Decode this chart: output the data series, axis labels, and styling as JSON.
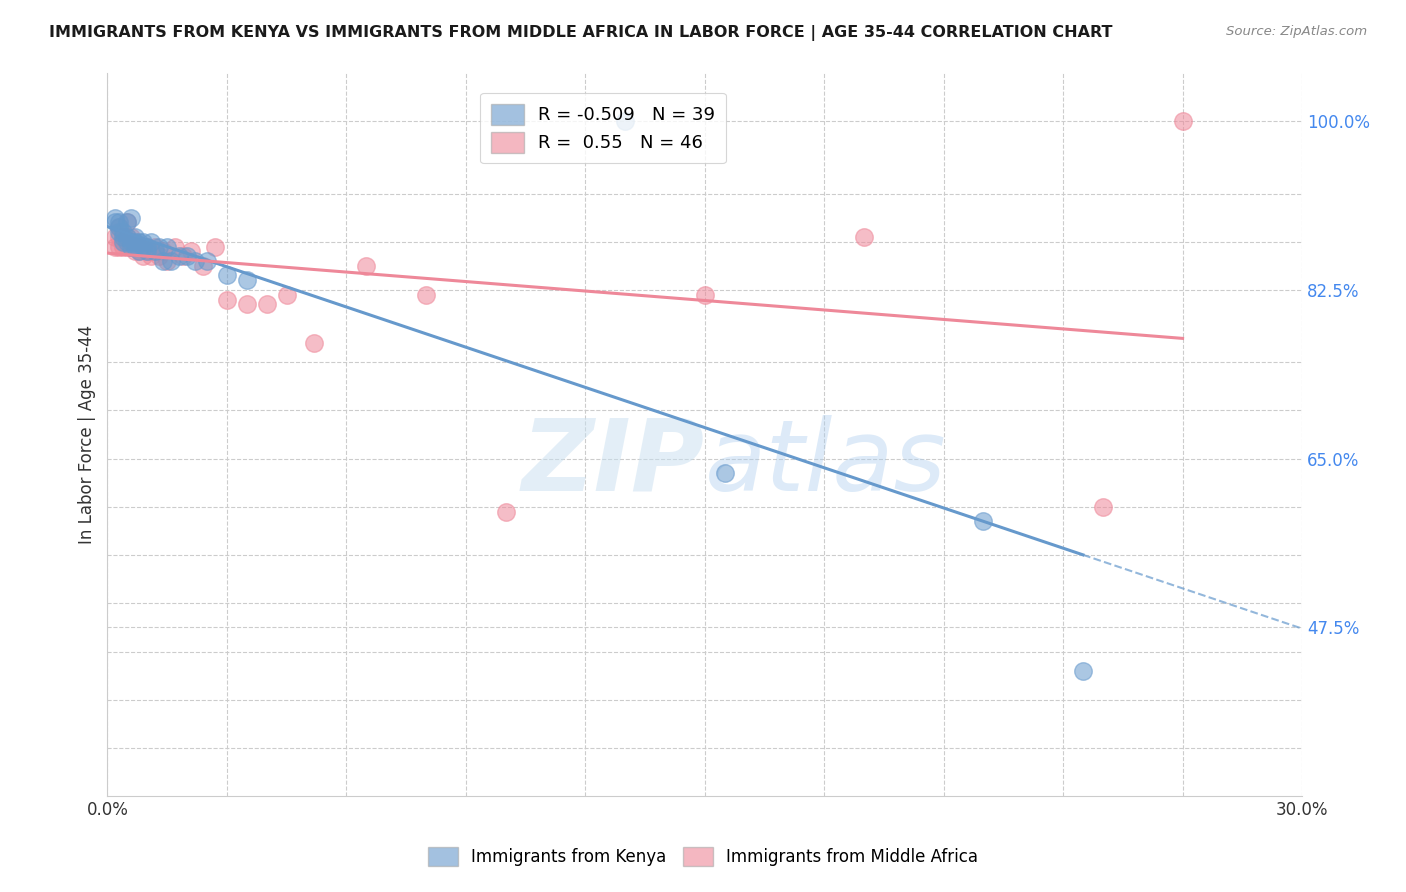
{
  "title": "IMMIGRANTS FROM KENYA VS IMMIGRANTS FROM MIDDLE AFRICA IN LABOR FORCE | AGE 35-44 CORRELATION CHART",
  "source": "Source: ZipAtlas.com",
  "ylabel": "In Labor Force | Age 35-44",
  "xlim": [
    0.0,
    0.3
  ],
  "ylim": [
    0.3,
    1.05
  ],
  "ytick_positions": [
    0.475,
    0.65,
    0.825,
    1.0
  ],
  "ytick_labels": [
    "47.5%",
    "65.0%",
    "82.5%",
    "100.0%"
  ],
  "xtick_positions": [
    0.0,
    0.03,
    0.06,
    0.09,
    0.12,
    0.15,
    0.18,
    0.21,
    0.24,
    0.27,
    0.3
  ],
  "xtick_labels": [
    "0.0%",
    "",
    "",
    "",
    "",
    "",
    "",
    "",
    "",
    "",
    "30.0%"
  ],
  "kenya_R": -0.509,
  "kenya_N": 39,
  "midafrica_R": 0.55,
  "midafrica_N": 46,
  "kenya_color": "#6699cc",
  "midafrica_color": "#ee8899",
  "kenya_x": [
    0.002,
    0.002,
    0.003,
    0.003,
    0.003,
    0.004,
    0.004,
    0.004,
    0.005,
    0.005,
    0.005,
    0.006,
    0.006,
    0.006,
    0.007,
    0.007,
    0.007,
    0.008,
    0.008,
    0.009,
    0.009,
    0.01,
    0.01,
    0.011,
    0.012,
    0.013,
    0.014,
    0.015,
    0.016,
    0.018,
    0.02,
    0.022,
    0.025,
    0.03,
    0.035,
    0.13,
    0.155,
    0.22,
    0.245
  ],
  "kenya_y": [
    0.895,
    0.9,
    0.885,
    0.89,
    0.895,
    0.875,
    0.88,
    0.885,
    0.875,
    0.88,
    0.895,
    0.87,
    0.875,
    0.9,
    0.87,
    0.875,
    0.88,
    0.865,
    0.875,
    0.87,
    0.875,
    0.865,
    0.87,
    0.875,
    0.865,
    0.87,
    0.855,
    0.87,
    0.855,
    0.86,
    0.86,
    0.855,
    0.855,
    0.84,
    0.835,
    1.0,
    0.635,
    0.585,
    0.43
  ],
  "midafrica_x": [
    0.002,
    0.002,
    0.003,
    0.003,
    0.003,
    0.004,
    0.004,
    0.004,
    0.005,
    0.005,
    0.005,
    0.005,
    0.006,
    0.006,
    0.006,
    0.007,
    0.007,
    0.008,
    0.008,
    0.009,
    0.009,
    0.01,
    0.01,
    0.011,
    0.011,
    0.012,
    0.013,
    0.014,
    0.015,
    0.017,
    0.019,
    0.021,
    0.024,
    0.027,
    0.03,
    0.035,
    0.04,
    0.045,
    0.052,
    0.065,
    0.08,
    0.1,
    0.15,
    0.19,
    0.25,
    0.27
  ],
  "midafrica_y": [
    0.87,
    0.88,
    0.87,
    0.88,
    0.89,
    0.87,
    0.875,
    0.88,
    0.87,
    0.875,
    0.88,
    0.895,
    0.87,
    0.875,
    0.88,
    0.865,
    0.87,
    0.865,
    0.87,
    0.86,
    0.87,
    0.865,
    0.87,
    0.86,
    0.865,
    0.87,
    0.86,
    0.865,
    0.855,
    0.87,
    0.86,
    0.865,
    0.85,
    0.87,
    0.815,
    0.81,
    0.81,
    0.82,
    0.77,
    0.85,
    0.82,
    0.595,
    0.82,
    0.88,
    0.6,
    1.0
  ],
  "watermark_zip": "ZIP",
  "watermark_atlas": "atlas",
  "background_color": "#ffffff",
  "grid_color": "#cccccc",
  "grid_yticks": [
    0.35,
    0.4,
    0.45,
    0.475,
    0.5,
    0.55,
    0.6,
    0.65,
    0.7,
    0.75,
    0.825,
    0.875,
    0.925,
    1.0
  ]
}
